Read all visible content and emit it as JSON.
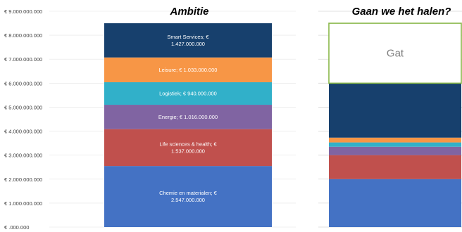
{
  "chart_data": [
    {
      "type": "bar",
      "stacked": true,
      "title": "Ambitie",
      "xlabel": "",
      "ylabel": "",
      "ylim": [
        0,
        9000000000
      ],
      "y_tick_labels": [
        "€ .000.000",
        "€ 1.000.000.000",
        "€ 2.000.000.000",
        "€ 3.000.000.000",
        "€ 4.000.000.000",
        "€ 5.000.000.000",
        "€ 6.000.000.000",
        "€ 7.000.000.000",
        "€ 8.000.000.000",
        "€ 9.000.000.000"
      ],
      "grid": true,
      "series": [
        {
          "label_lines": [
            "Chemie en materialen; €",
            "2.547.000.000"
          ],
          "value": 2547000000,
          "color": "#4472c4"
        },
        {
          "label_lines": [
            "Life sciences & health; €",
            "1.537.000.000"
          ],
          "value": 1537000000,
          "color": "#c0504d"
        },
        {
          "label_lines": [
            "Energie; € 1.016.000.000"
          ],
          "value": 1016000000,
          "color": "#8064a2"
        },
        {
          "label_lines": [
            "Logistiek; € 940.000.000"
          ],
          "value": 940000000,
          "color": "#31b0c9"
        },
        {
          "label_lines": [
            "Leisure; € 1.033.000.000"
          ],
          "value": 1033000000,
          "color": "#f79646"
        },
        {
          "label_lines": [
            "Smart Services; €",
            "1.427.000.000"
          ],
          "value": 1427000000,
          "color": "#17406d"
        }
      ]
    },
    {
      "type": "bar",
      "stacked": true,
      "title": "Gaan we het halen?",
      "xlabel": "",
      "ylabel": "",
      "ylim": [
        0,
        9000000000
      ],
      "grid": true,
      "series": [
        {
          "value": 2000000000,
          "color": "#4472c4"
        },
        {
          "value": 1000000000,
          "color": "#c0504d"
        },
        {
          "value": 350000000,
          "color": "#8064a2"
        },
        {
          "value": 180000000,
          "color": "#31b0c9"
        },
        {
          "value": 200000000,
          "color": "#f79646"
        },
        {
          "value": 2270000000,
          "color": "#17406d"
        },
        {
          "label": "Gat",
          "value": 2500000000,
          "color": "#ffffff",
          "border": "#8ab84a"
        }
      ]
    }
  ]
}
